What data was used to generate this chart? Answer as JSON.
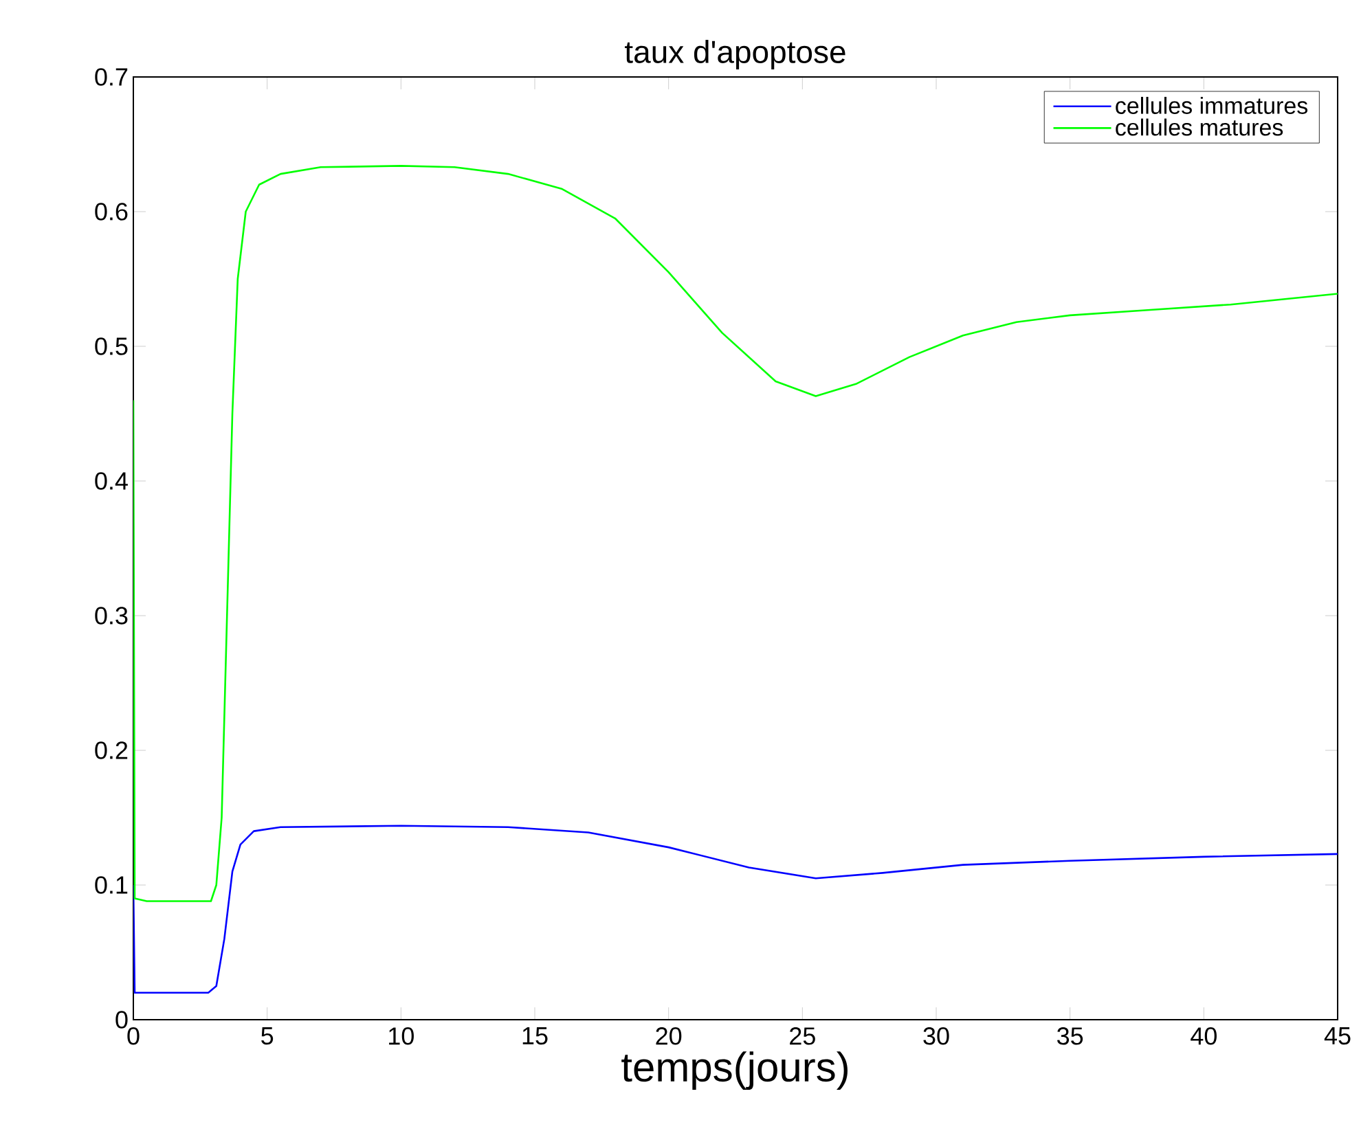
{
  "chart_data": {
    "type": "line",
    "title": "taux d'apoptose",
    "xlabel": "temps(jours)",
    "xlim": [
      0,
      45
    ],
    "xticks": [
      0,
      5,
      10,
      15,
      20,
      25,
      30,
      35,
      40,
      45
    ],
    "ylim": [
      0,
      0.7
    ],
    "yticks": [
      0,
      0.1,
      0.2,
      0.3,
      0.4,
      0.5,
      0.6,
      0.7
    ],
    "legend": "top right",
    "grid": false,
    "marker": "none",
    "line_style": "solid",
    "series": [
      {
        "name": "cellules immatures",
        "color": "#0000ff",
        "x": [
          0,
          0.05,
          2.8,
          3.1,
          3.4,
          3.7,
          4,
          4.5,
          5.5,
          10,
          14,
          17,
          20,
          23,
          25.5,
          28,
          31,
          35,
          40,
          45
        ],
        "values": [
          0.1,
          0.02,
          0.02,
          0.025,
          0.06,
          0.11,
          0.13,
          0.14,
          0.143,
          0.144,
          0.143,
          0.139,
          0.128,
          0.113,
          0.105,
          0.109,
          0.115,
          0.118,
          0.121,
          0.123
        ]
      },
      {
        "name": "cellules matures",
        "color": "#00ff00",
        "x": [
          0,
          0.05,
          0.5,
          2.9,
          3.1,
          3.3,
          3.5,
          3.7,
          3.9,
          4.2,
          4.7,
          5.5,
          7,
          10,
          12,
          14,
          16,
          18,
          20,
          22,
          24,
          25.5,
          27,
          29,
          31,
          33,
          35,
          38,
          41,
          45
        ],
        "values": [
          0.46,
          0.09,
          0.088,
          0.088,
          0.1,
          0.15,
          0.3,
          0.45,
          0.55,
          0.6,
          0.62,
          0.628,
          0.633,
          0.634,
          0.633,
          0.628,
          0.617,
          0.595,
          0.555,
          0.51,
          0.474,
          0.463,
          0.472,
          0.492,
          0.508,
          0.518,
          0.523,
          0.527,
          0.531,
          0.539
        ]
      }
    ]
  }
}
